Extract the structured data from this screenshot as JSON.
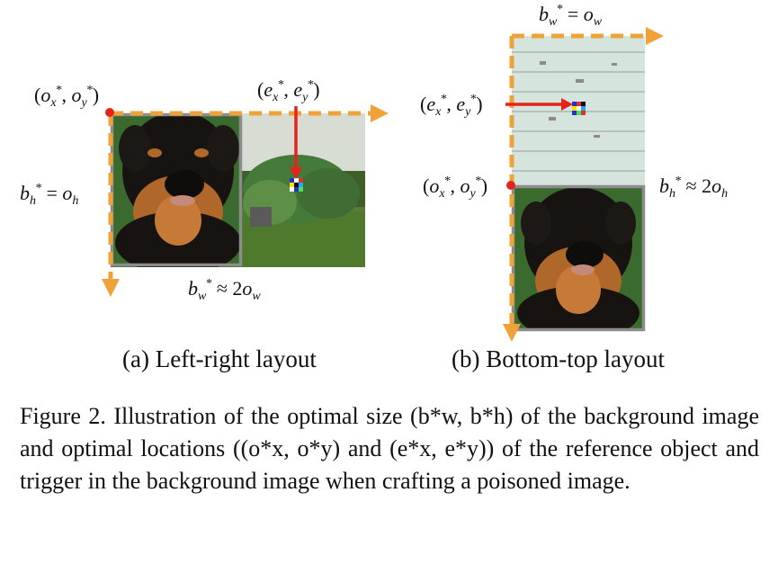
{
  "figure": {
    "panel_a": {
      "origin_label": "(o*x, o*y)",
      "trigger_label": "(e*x, e*y)",
      "height_label": "b*h = oh",
      "width_label": "b*w ≈ 2ow",
      "subcaption": "(a) Left-right layout"
    },
    "panel_b": {
      "top_width_label": "b*w = ow",
      "trigger_label": "(e*x, e*y)",
      "origin_label": "(o*x, o*y)",
      "height_label": "b*h ≈ 2oh",
      "subcaption": "(b) Bottom-top layout"
    },
    "caption": "Figure 2. Illustration of the optimal size (b*w, b*h) of the background image and optimal locations ((o*x, o*y) and (e*x, e*y)) of the reference object and trigger in the background image when crafting a poisoned image.",
    "colors": {
      "axis_arrow": "#F0A23A",
      "trigger_arrow": "#E5231B",
      "frame": "#8C8C8C",
      "origin_dot": "#E5231B"
    }
  }
}
